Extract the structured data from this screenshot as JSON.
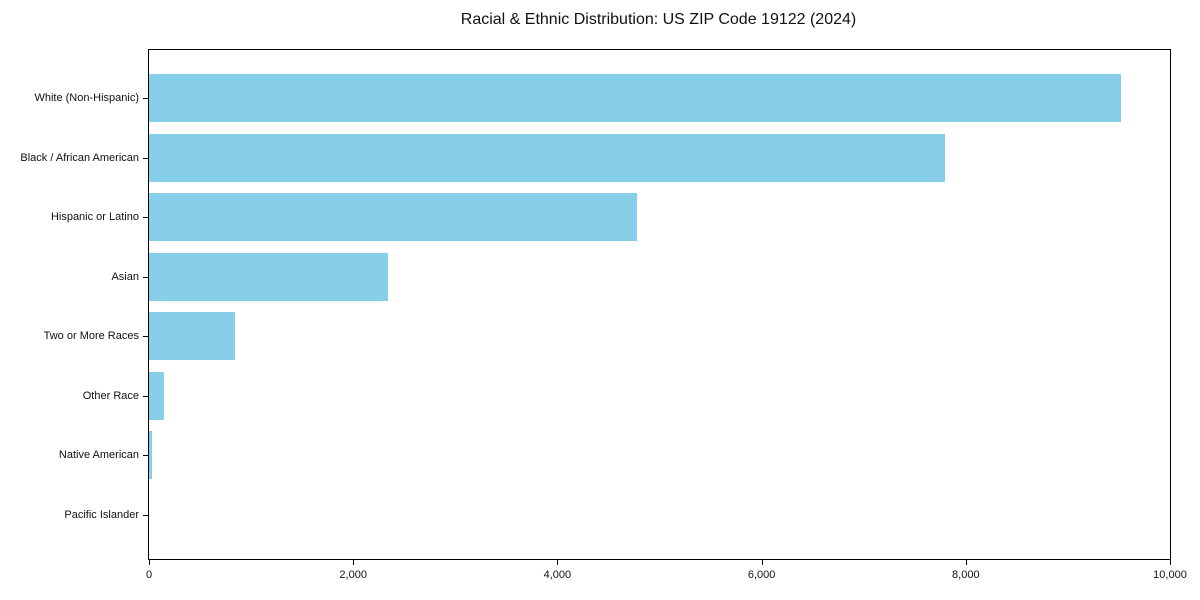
{
  "title": "Racial & Ethnic Distribution: US ZIP Code 19122 (2024)",
  "colors": {
    "bar": "#87CEEB",
    "axis": "#000000",
    "background": "#FFFFFF",
    "text": "#111111"
  },
  "chart_data": {
    "type": "bar",
    "orientation": "horizontal",
    "title": "Racial & Ethnic Distribution: US ZIP Code 19122 (2024)",
    "categories": [
      "White (Non-Hispanic)",
      "Black / African American",
      "Hispanic or Latino",
      "Asian",
      "Two or More Races",
      "Other Race",
      "Native American",
      "Pacific Islander"
    ],
    "values": [
      9520,
      7800,
      4780,
      2340,
      840,
      145,
      30,
      0
    ],
    "xlabel": "",
    "ylabel": "",
    "xlim": [
      0,
      10000
    ],
    "xticks": [
      0,
      2000,
      4000,
      6000,
      8000,
      10000
    ],
    "xtick_labels": [
      "0",
      "2,000",
      "4,000",
      "6,000",
      "8,000",
      "10,000"
    ],
    "grid": false,
    "legend": null,
    "bar_color": "#87CEEB"
  }
}
